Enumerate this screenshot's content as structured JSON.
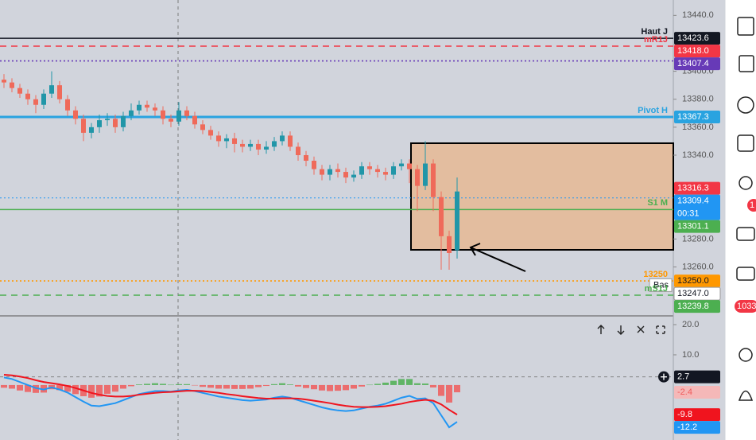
{
  "chart_data": [
    {
      "type": "candlestick",
      "up_color": "#2196a8",
      "down_color": "#ef6a5a",
      "ylim": [
        13225,
        13451
      ],
      "yticks": [
        {
          "value": 13440,
          "label": "13440.0"
        },
        {
          "value": 13400,
          "label": "13400.0"
        },
        {
          "value": 13380,
          "label": "13380.0"
        },
        {
          "value": 13360,
          "label": "13360.0"
        },
        {
          "value": 13340,
          "label": "13340.0"
        },
        {
          "value": 13280,
          "label": "13280.0"
        },
        {
          "value": 13260,
          "label": "13260.0"
        }
      ],
      "open": [
        13394,
        13392,
        13388,
        13384,
        13380,
        13376,
        13384,
        13390,
        13380,
        13372,
        13366,
        13356,
        13360,
        13365,
        13366,
        13360,
        13368,
        13372,
        13376,
        13374,
        13372,
        13366,
        13364,
        13372,
        13368,
        13362,
        13358,
        13354,
        13350,
        13352,
        13348,
        13346,
        13348,
        13344,
        13346,
        13350,
        13354,
        13346,
        13340,
        13336,
        13330,
        13326,
        13330,
        13328,
        13324,
        13326,
        13332,
        13330,
        13328,
        13326,
        13332,
        13334,
        13330,
        13318,
        13334,
        13310,
        13282,
        13272
      ],
      "high": [
        13398,
        13395,
        13391,
        13387,
        13383,
        13387,
        13400,
        13393,
        13383,
        13375,
        13369,
        13363,
        13369,
        13370,
        13369,
        13371,
        13377,
        13379,
        13379,
        13377,
        13375,
        13369,
        13378,
        13375,
        13371,
        13365,
        13361,
        13357,
        13355,
        13356,
        13351,
        13351,
        13351,
        13350,
        13353,
        13357,
        13357,
        13349,
        13343,
        13339,
        13333,
        13333,
        13334,
        13331,
        13329,
        13335,
        13335,
        13333,
        13331,
        13335,
        13337,
        13337,
        13333,
        13350,
        13337,
        13314,
        13286,
        13324
      ],
      "low": [
        13388,
        13385,
        13381,
        13376,
        13370,
        13373,
        13381,
        13377,
        13368,
        13362,
        13350,
        13352,
        13356,
        13361,
        13356,
        13357,
        13365,
        13369,
        13371,
        13368,
        13362,
        13360,
        13361,
        13365,
        13359,
        13355,
        13351,
        13346,
        13345,
        13342,
        13342,
        13343,
        13340,
        13341,
        13343,
        13347,
        13343,
        13336,
        13332,
        13326,
        13322,
        13322,
        13324,
        13320,
        13321,
        13323,
        13326,
        13324,
        13322,
        13323,
        13329,
        13320,
        13300,
        13315,
        13300,
        13258,
        13258,
        13266
      ],
      "close": [
        13392,
        13388,
        13384,
        13380,
        13376,
        13384,
        13390,
        13380,
        13372,
        13366,
        13356,
        13360,
        13365,
        13366,
        13360,
        13368,
        13372,
        13376,
        13374,
        13372,
        13366,
        13364,
        13372,
        13368,
        13362,
        13358,
        13354,
        13350,
        13352,
        13348,
        13346,
        13348,
        13344,
        13346,
        13350,
        13354,
        13346,
        13340,
        13336,
        13330,
        13326,
        13330,
        13328,
        13324,
        13326,
        13332,
        13330,
        13328,
        13326,
        13332,
        13334,
        13330,
        13318,
        13334,
        13310,
        13282,
        13270,
        13314
      ],
      "levels": [
        {
          "name": "Haut J",
          "value": 13423.6,
          "color": "#131722",
          "style": "solid"
        },
        {
          "name": "mR1J",
          "value": 13418.0,
          "value_label": "13418.0",
          "color": "#f23645",
          "style": "dashed"
        },
        {
          "value": 13407.4,
          "color": "#673ab7",
          "style": "dotted"
        },
        {
          "name": "Pivot H",
          "value": 13367.3,
          "color": "#29a3e0",
          "style": "thick"
        },
        {
          "name": "S1 M",
          "value": 13301.1,
          "color": "#4caf50",
          "style": "solid"
        },
        {
          "name": "13250",
          "value": 13250.0,
          "value_label": "13250.0",
          "color": "#ff9800",
          "style": "dotted"
        },
        {
          "name": "Bas",
          "value": 13247.0,
          "value_label": "13247.0",
          "color": "#ffffff",
          "style": "none"
        },
        {
          "name": "mS1J",
          "value": 13239.8,
          "color": "#4caf50",
          "style": "dashed"
        }
      ],
      "price_tags": [
        {
          "value": 13316.3,
          "color": "#f23645"
        },
        {
          "value": 13309.4,
          "color": "#2196f3",
          "countdown": "00:31",
          "line": "dotted"
        }
      ]
    },
    {
      "type": "macd",
      "ylim": [
        -18.2,
        22.9
      ],
      "yticks": [
        {
          "value": 20,
          "label": "20.0"
        },
        {
          "value": 10,
          "label": "10.0"
        }
      ],
      "marker": 2.7,
      "histogram": {
        "values": [
          -0.9,
          -1.2,
          -1.8,
          -2.3,
          -2.6,
          -2.5,
          -1.4,
          -1.7,
          -2.2,
          -3.0,
          -3.7,
          -4.2,
          -3.8,
          -2.9,
          -2.2,
          -1.2,
          -0.4,
          0.2,
          0.4,
          0.6,
          0.4,
          0.1,
          0.3,
          0.3,
          -0.1,
          -0.6,
          -0.9,
          -1.2,
          -1.2,
          -1.3,
          -1.3,
          -1.2,
          -0.7,
          -0.3,
          0.3,
          0.6,
          0.2,
          -0.5,
          -1.0,
          -1.4,
          -1.8,
          -2.0,
          -1.9,
          -1.7,
          -1.2,
          -0.5,
          0.1,
          0.4,
          0.8,
          1.4,
          2.0,
          2.0,
          0.6,
          0.5,
          -0.8,
          -3.6,
          -5.8,
          -2.4
        ],
        "up_color": "#4caf50",
        "down_color": "#f05a5a",
        "tag_color": "#f5b8b8"
      },
      "series": [
        {
          "color": "#2196f3",
          "values": [
            2.5,
            2.0,
            1.0,
            0,
            -1.0,
            -1.5,
            -0.8,
            -1.5,
            -2.5,
            -4.0,
            -5.5,
            -6.8,
            -7.0,
            -6.5,
            -6.0,
            -5.0,
            -4.0,
            -3.0,
            -2.5,
            -2.0,
            -2.0,
            -2.2,
            -1.8,
            -1.6,
            -2.0,
            -2.6,
            -3.2,
            -3.8,
            -4.2,
            -4.6,
            -5.0,
            -5.2,
            -5.0,
            -4.8,
            -4.2,
            -3.8,
            -4.2,
            -5.0,
            -5.8,
            -6.6,
            -7.4,
            -8.0,
            -8.4,
            -8.6,
            -8.4,
            -7.8,
            -7.2,
            -6.8,
            -6.2,
            -5.2,
            -4.2,
            -3.6,
            -4.6,
            -4.4,
            -6.0,
            -10.0,
            -14.0,
            -12.2
          ]
        },
        {
          "color": "#f0141e",
          "values": [
            3.4,
            3.2,
            2.8,
            2.3,
            1.6,
            1.0,
            0.6,
            0.2,
            -0.3,
            -1.0,
            -1.8,
            -2.6,
            -3.2,
            -3.6,
            -3.8,
            -3.8,
            -3.6,
            -3.2,
            -2.9,
            -2.6,
            -2.4,
            -2.3,
            -2.1,
            -1.9,
            -1.9,
            -2.0,
            -2.3,
            -2.6,
            -3.0,
            -3.3,
            -3.7,
            -4.0,
            -4.3,
            -4.5,
            -4.5,
            -4.4,
            -4.4,
            -4.5,
            -4.8,
            -5.2,
            -5.6,
            -6.0,
            -6.5,
            -6.9,
            -7.2,
            -7.3,
            -7.3,
            -7.2,
            -7.0,
            -6.6,
            -6.2,
            -5.6,
            -5.2,
            -4.9,
            -5.2,
            -6.4,
            -8.2,
            -9.8
          ]
        }
      ]
    }
  ],
  "sidebar": {
    "badges": [
      1,
      1033
    ]
  }
}
